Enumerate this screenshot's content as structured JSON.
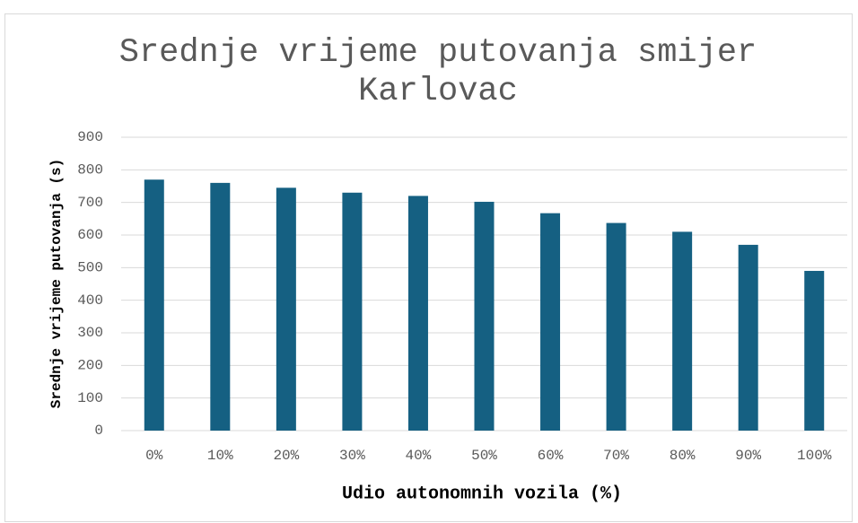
{
  "chart_data": {
    "type": "bar",
    "title": "Srednje vrijeme putovanja smijer Karlovac",
    "x_label": "Udio autonomnih vozila (%)",
    "y_label": "Srednje vrijeme putovanja (s)",
    "categories": [
      "0%",
      "10%",
      "20%",
      "30%",
      "40%",
      "50%",
      "60%",
      "70%",
      "80%",
      "90%",
      "100%"
    ],
    "values": [
      770,
      760,
      745,
      730,
      720,
      702,
      667,
      637,
      610,
      570,
      490
    ],
    "color": "#156082",
    "ylim": [
      0,
      900
    ],
    "yticks": [
      0,
      100,
      200,
      300,
      400,
      500,
      600,
      700,
      800,
      900
    ],
    "grid": true
  }
}
